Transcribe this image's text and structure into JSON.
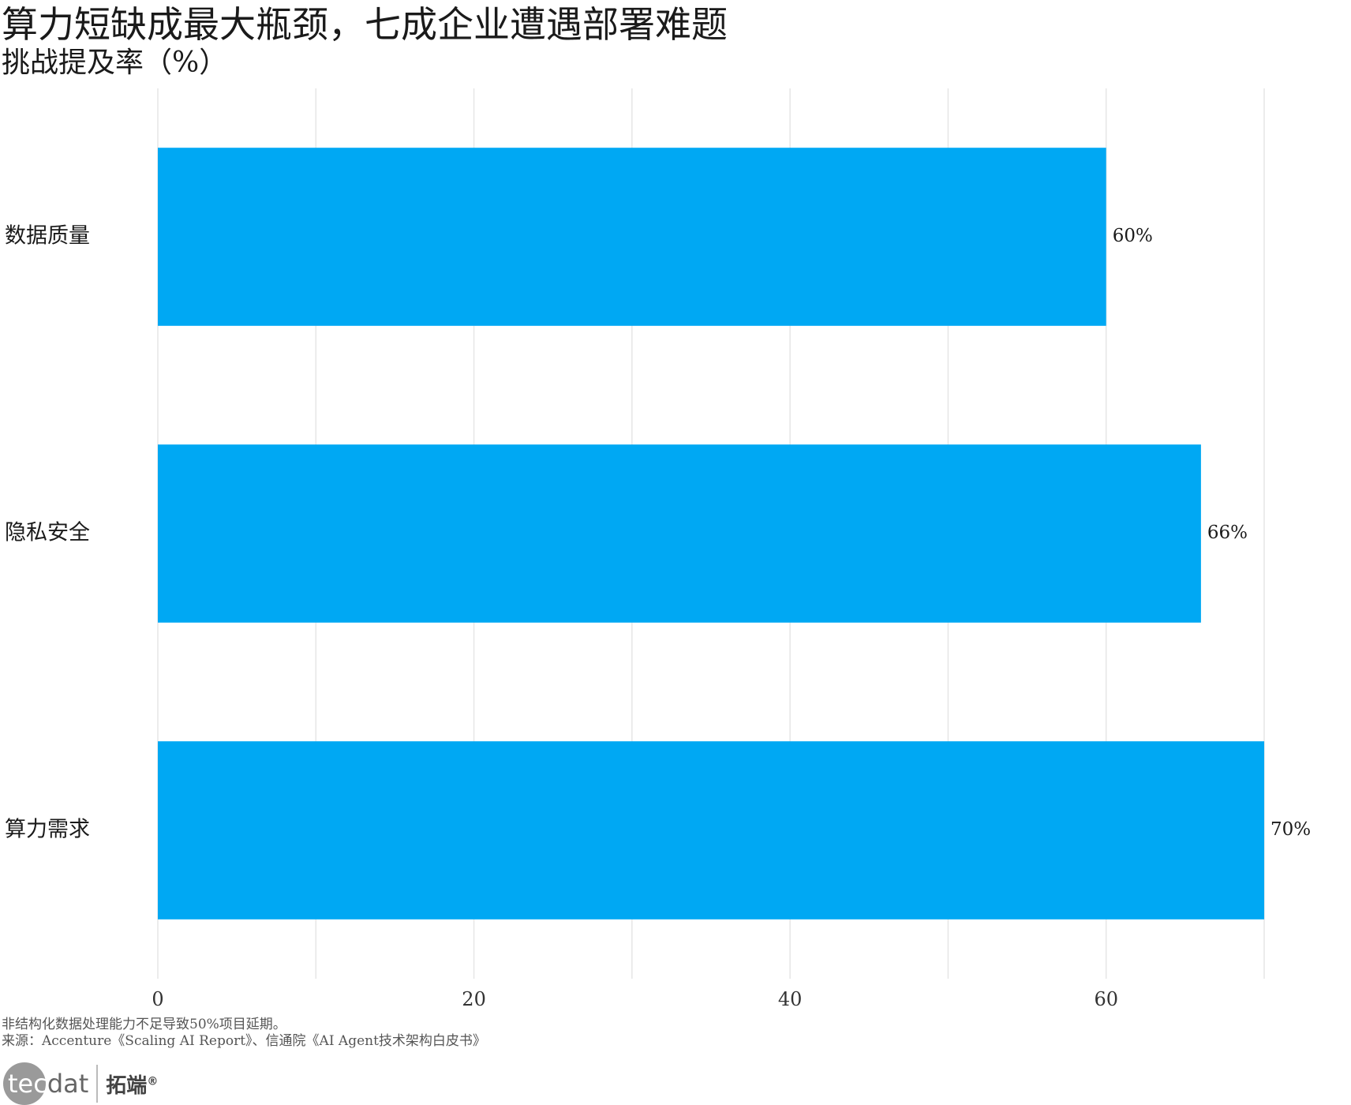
{
  "title": "算力短缺成最大瓶颈，七成企业遭遇部署难题",
  "subtitle": "挑战提及率（%）",
  "chart_data": {
    "type": "bar",
    "orientation": "horizontal",
    "categories": [
      "数据质量",
      "隐私安全",
      "算力需求"
    ],
    "values": [
      60,
      66,
      70
    ],
    "value_labels": [
      "60%",
      "66%",
      "70%"
    ],
    "xlim": [
      0,
      70
    ],
    "x_ticks": [
      0,
      20,
      40,
      60
    ],
    "x_tick_labels": [
      "0",
      "20",
      "40",
      "60"
    ],
    "grid": true,
    "bar_color": "#00A8F3"
  },
  "footnote": "非结构化数据处理能力不足导致50%项目延期。",
  "source": "来源：Accenture《Scaling AI Report》、信通院《AI Agent技术架构白皮书》",
  "logo": {
    "text_left": "tec",
    "text_right": "dat",
    "cn": "拓端",
    "mark": "®"
  }
}
